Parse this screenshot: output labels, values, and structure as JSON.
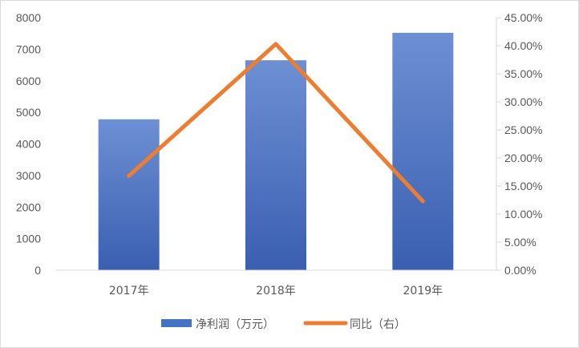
{
  "chart_data": {
    "type": "bar",
    "categories": [
      "2017年",
      "2018年",
      "2019年"
    ],
    "series": [
      {
        "name": "净利润（万元）",
        "type": "bar",
        "axis": "left",
        "values": [
          4780,
          6650,
          7520
        ]
      },
      {
        "name": "同比（右）",
        "type": "line",
        "axis": "right",
        "values": [
          16.8,
          40.3,
          12.3
        ]
      }
    ],
    "y_left": {
      "min": 0,
      "max": 8000,
      "step": 1000,
      "ticks": [
        "0",
        "1000",
        "2000",
        "3000",
        "4000",
        "5000",
        "6000",
        "7000",
        "8000"
      ]
    },
    "y_right": {
      "min": 0,
      "max": 45,
      "step": 5,
      "ticks": [
        "0.00%",
        "5.00%",
        "10.00%",
        "15.00%",
        "20.00%",
        "25.00%",
        "30.00%",
        "35.00%",
        "40.00%",
        "45.00%"
      ]
    },
    "grid": false,
    "legend": "bottom",
    "colors": {
      "bar": "#4472C4",
      "bar_dark": "#3a5fb0",
      "line": "#ED7D31",
      "axis": "#d9d9d9",
      "text": "#595959"
    }
  }
}
